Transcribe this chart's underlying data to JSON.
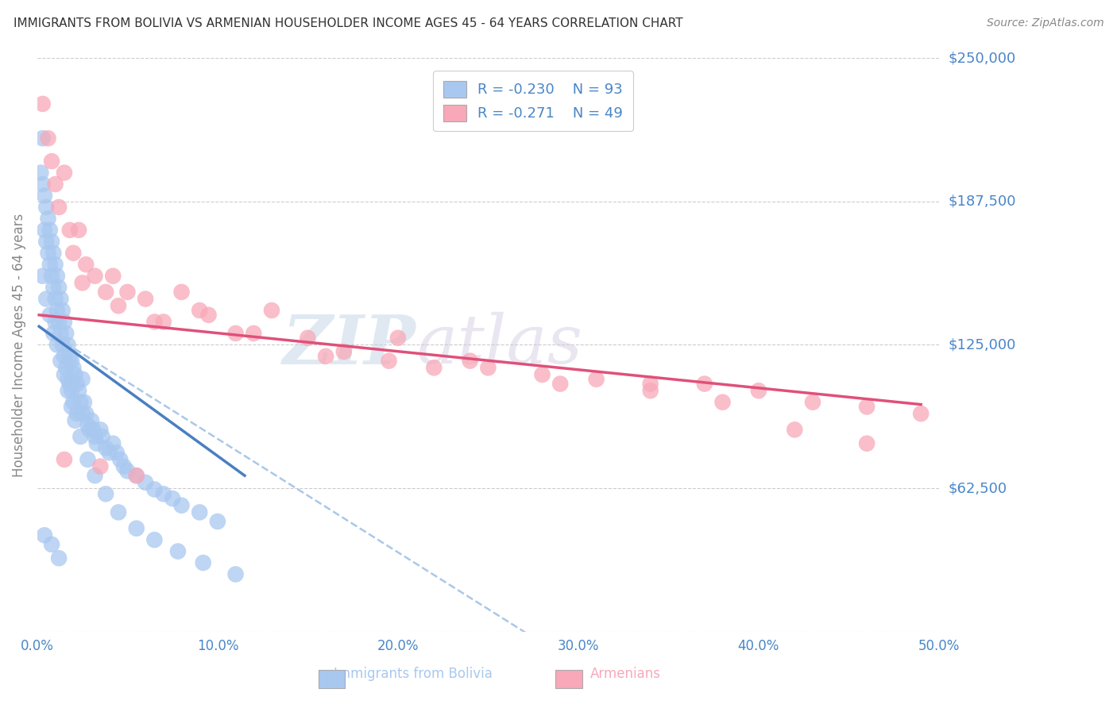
{
  "title": "IMMIGRANTS FROM BOLIVIA VS ARMENIAN HOUSEHOLDER INCOME AGES 45 - 64 YEARS CORRELATION CHART",
  "source": "Source: ZipAtlas.com",
  "ylabel": "Householder Income Ages 45 - 64 years",
  "xlim": [
    0.0,
    0.5
  ],
  "ylim": [
    0,
    250000
  ],
  "yticks": [
    0,
    62500,
    125000,
    187500,
    250000
  ],
  "ytick_labels": [
    "",
    "$62,500",
    "$125,000",
    "$187,500",
    "$250,000"
  ],
  "xticks": [
    0.0,
    0.1,
    0.2,
    0.3,
    0.4,
    0.5
  ],
  "xtick_labels": [
    "0.0%",
    "10.0%",
    "20.0%",
    "30.0%",
    "40.0%",
    "50.0%"
  ],
  "bolivia_color": "#a8c8f0",
  "armenia_color": "#f8a8b8",
  "bolivia_R": -0.23,
  "bolivia_N": 93,
  "armenia_R": -0.271,
  "armenia_N": 49,
  "watermark_zip": "ZIP",
  "watermark_atlas": "atlas",
  "background_color": "#ffffff",
  "grid_color": "#cccccc",
  "title_color": "#333333",
  "axis_label_color": "#888888",
  "tick_label_color": "#4a86c8",
  "bolivia_line_color": "#4a7fc1",
  "armenia_line_color": "#e0507a",
  "dashed_line_color": "#aac8e8",
  "bolivia_scatter": {
    "x": [
      0.002,
      0.003,
      0.003,
      0.004,
      0.004,
      0.005,
      0.005,
      0.006,
      0.006,
      0.007,
      0.007,
      0.008,
      0.008,
      0.009,
      0.009,
      0.01,
      0.01,
      0.01,
      0.011,
      0.011,
      0.012,
      0.012,
      0.013,
      0.013,
      0.014,
      0.014,
      0.015,
      0.015,
      0.016,
      0.016,
      0.017,
      0.017,
      0.018,
      0.018,
      0.019,
      0.019,
      0.02,
      0.02,
      0.021,
      0.022,
      0.022,
      0.023,
      0.024,
      0.025,
      0.025,
      0.026,
      0.027,
      0.028,
      0.029,
      0.03,
      0.031,
      0.032,
      0.033,
      0.035,
      0.036,
      0.038,
      0.04,
      0.042,
      0.044,
      0.046,
      0.048,
      0.05,
      0.055,
      0.06,
      0.065,
      0.07,
      0.075,
      0.08,
      0.09,
      0.1,
      0.003,
      0.005,
      0.007,
      0.009,
      0.011,
      0.013,
      0.015,
      0.017,
      0.019,
      0.021,
      0.024,
      0.028,
      0.032,
      0.038,
      0.045,
      0.055,
      0.065,
      0.078,
      0.092,
      0.11,
      0.004,
      0.008,
      0.012
    ],
    "y": [
      200000,
      215000,
      195000,
      190000,
      175000,
      185000,
      170000,
      180000,
      165000,
      175000,
      160000,
      170000,
      155000,
      165000,
      150000,
      160000,
      145000,
      135000,
      155000,
      140000,
      150000,
      135000,
      145000,
      130000,
      140000,
      125000,
      135000,
      120000,
      130000,
      115000,
      125000,
      110000,
      120000,
      108000,
      118000,
      105000,
      115000,
      100000,
      112000,
      108000,
      95000,
      105000,
      100000,
      110000,
      95000,
      100000,
      95000,
      90000,
      88000,
      92000,
      88000,
      85000,
      82000,
      88000,
      85000,
      80000,
      78000,
      82000,
      78000,
      75000,
      72000,
      70000,
      68000,
      65000,
      62000,
      60000,
      58000,
      55000,
      52000,
      48000,
      155000,
      145000,
      138000,
      130000,
      125000,
      118000,
      112000,
      105000,
      98000,
      92000,
      85000,
      75000,
      68000,
      60000,
      52000,
      45000,
      40000,
      35000,
      30000,
      25000,
      42000,
      38000,
      32000
    ]
  },
  "armenia_scatter": {
    "x": [
      0.003,
      0.006,
      0.008,
      0.01,
      0.012,
      0.015,
      0.018,
      0.02,
      0.023,
      0.027,
      0.032,
      0.038,
      0.042,
      0.05,
      0.06,
      0.07,
      0.08,
      0.095,
      0.11,
      0.13,
      0.15,
      0.17,
      0.195,
      0.22,
      0.25,
      0.28,
      0.31,
      0.34,
      0.37,
      0.4,
      0.43,
      0.46,
      0.49,
      0.025,
      0.045,
      0.065,
      0.09,
      0.12,
      0.16,
      0.2,
      0.24,
      0.29,
      0.34,
      0.38,
      0.42,
      0.46,
      0.015,
      0.035,
      0.055
    ],
    "y": [
      230000,
      215000,
      205000,
      195000,
      185000,
      200000,
      175000,
      165000,
      175000,
      160000,
      155000,
      148000,
      155000,
      148000,
      145000,
      135000,
      148000,
      138000,
      130000,
      140000,
      128000,
      122000,
      118000,
      115000,
      115000,
      112000,
      110000,
      108000,
      108000,
      105000,
      100000,
      98000,
      95000,
      152000,
      142000,
      135000,
      140000,
      130000,
      120000,
      128000,
      118000,
      108000,
      105000,
      100000,
      88000,
      82000,
      75000,
      72000,
      68000
    ]
  },
  "bolivia_line": {
    "x0": 0.001,
    "x1": 0.115,
    "y0": 133000,
    "y1": 68000
  },
  "armenia_line": {
    "x0": 0.001,
    "x1": 0.49,
    "y0": 138000,
    "y1": 99000
  },
  "dashed_line": {
    "x0": 0.001,
    "x1": 0.28,
    "y0": 133000,
    "y1": -5000
  }
}
